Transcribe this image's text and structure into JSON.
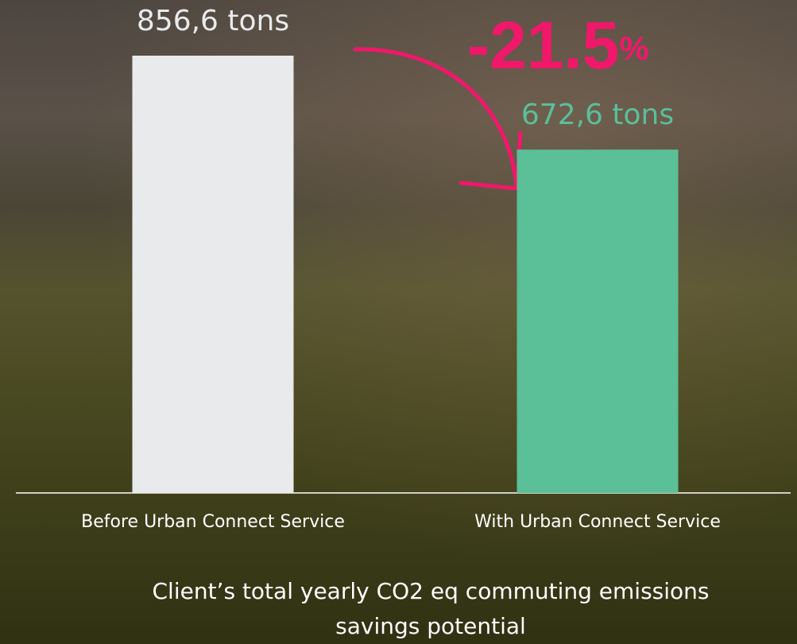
{
  "chart_data": {
    "type": "bar",
    "title": "Client’s total yearly CO2 eq commuting emissions savings potential",
    "categories": [
      "Before Urban Connect Service",
      "With Urban Connect Service"
    ],
    "values": [
      856.6,
      672.6
    ],
    "value_labels": [
      "856,6 tons",
      "672,6 tons"
    ],
    "colors": [
      "#e8eaec",
      "#5bbf98"
    ],
    "annotation": {
      "text": "-21.5",
      "suffix": "%"
    }
  }
}
